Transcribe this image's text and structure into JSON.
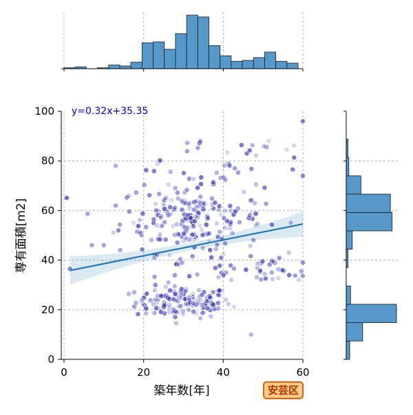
{
  "chart_data": {
    "type": "scatter",
    "title": "",
    "xlabel": "築年数[年]",
    "ylabel": "専有面積[m2]",
    "xlim": [
      0,
      60
    ],
    "ylim": [
      0,
      100
    ],
    "xticks": [
      0,
      20,
      40,
      60
    ],
    "yticks": [
      0,
      20,
      40,
      60,
      80,
      100
    ],
    "grid": true,
    "point_color": "#3535b5",
    "regression": {
      "label": "y=0.32x+35.35",
      "slope": 0.32,
      "intercept": 35.35,
      "x_range": [
        1.5,
        60
      ],
      "line_color": "#1f77b4",
      "label_color": "#0000cc"
    },
    "marginal_x_histogram": {
      "bin_width": 2.8,
      "counts": [
        1,
        2,
        0,
        1,
        4,
        3,
        7,
        28,
        29,
        21,
        38,
        58,
        56,
        25,
        14,
        8,
        9,
        12,
        18,
        8,
        6
      ],
      "bar_color": "#5698c9"
    },
    "marginal_y_histogram": {
      "bin_width": 7.4,
      "counts": [
        4,
        19,
        58,
        5,
        0,
        2,
        7,
        53,
        51,
        17,
        3,
        2
      ],
      "bar_color": "#5698c9"
    },
    "area_label": "安芸区"
  }
}
